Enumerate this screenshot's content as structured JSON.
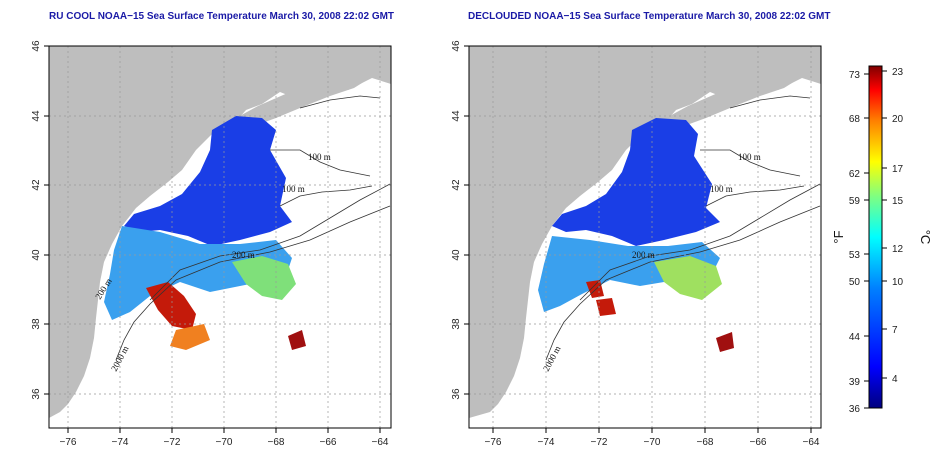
{
  "panels": [
    {
      "title": "RU COOL NOAA−15 Sea Surface Temperature March 30, 2008 22:02 GMT",
      "contour_labels": [
        "100 m",
        "100 m",
        "200 m",
        "2000 m",
        "200 m"
      ]
    },
    {
      "title": "DECLOUDED NOAA−15 Sea Surface Temperature March 30, 2008 22:02 GMT",
      "contour_labels": [
        "100 m",
        "100 m",
        "200 m",
        "2000 m"
      ]
    }
  ],
  "axes": {
    "x_ticks": [
      "−76",
      "−74",
      "−72",
      "−70",
      "−68",
      "−66",
      "−64"
    ],
    "y_ticks": [
      "36",
      "38",
      "40",
      "42",
      "44",
      "46"
    ]
  },
  "colorbar": {
    "fahrenheit_ticks": [
      "73",
      "68",
      "62",
      "59",
      "53",
      "50",
      "44",
      "39",
      "36"
    ],
    "celsius_ticks": [
      "23",
      "20",
      "17",
      "15",
      "12",
      "10",
      "7",
      "4"
    ],
    "fahrenheit_unit": "°F",
    "celsius_unit": "°C",
    "colors": [
      "#00007f",
      "#0000ff",
      "#0080ff",
      "#00ffff",
      "#80ff80",
      "#ffff00",
      "#ff8000",
      "#ff0000",
      "#7f0000"
    ]
  },
  "colors": {
    "land": "#bebebe",
    "title": "#1a1aa6",
    "cold_sst": "#1a3ee6",
    "mid_sst": "#3aa0ee",
    "warm_sst": "#c41a0a"
  }
}
